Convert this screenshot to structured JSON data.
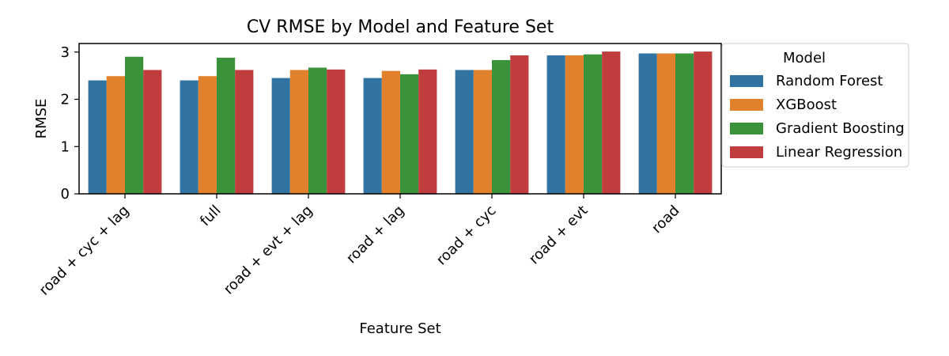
{
  "chart_data": {
    "type": "bar",
    "title": "CV RMSE by Model and Feature Set",
    "xlabel": "Feature Set",
    "ylabel": "RMSE",
    "categories": [
      "road + cyc + lag",
      "full",
      "road + evt + lag",
      "road + lag",
      "road + cyc",
      "road + evt",
      "road"
    ],
    "ylim": [
      0,
      3.18
    ],
    "yticks": [
      0,
      1,
      2,
      3
    ],
    "grid": false,
    "legend": {
      "title": "Model",
      "placement": "outside-top-right"
    },
    "series": [
      {
        "name": "Random Forest",
        "color": "#3274a1",
        "values": [
          2.4,
          2.4,
          2.45,
          2.45,
          2.62,
          2.93,
          2.97
        ]
      },
      {
        "name": "XGBoost",
        "color": "#e1812c",
        "values": [
          2.49,
          2.49,
          2.62,
          2.6,
          2.62,
          2.93,
          2.97
        ]
      },
      {
        "name": "Gradient Boosting",
        "color": "#3a923a",
        "values": [
          2.9,
          2.88,
          2.67,
          2.53,
          2.83,
          2.95,
          2.97
        ]
      },
      {
        "name": "Linear Regression",
        "color": "#c03d3e",
        "values": [
          2.62,
          2.62,
          2.63,
          2.63,
          2.93,
          3.01,
          3.01
        ]
      }
    ]
  }
}
